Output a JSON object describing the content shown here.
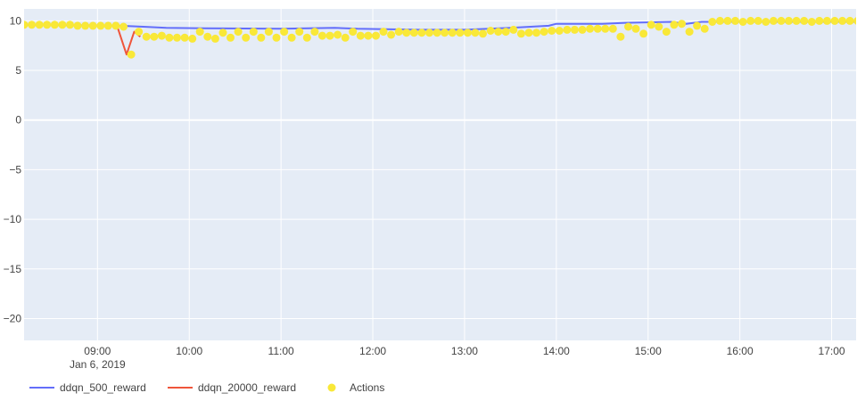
{
  "chart_data": {
    "type": "line",
    "title": "",
    "xlabel": "",
    "ylabel": "",
    "plot_bg": "#e5ecf6",
    "grid": true,
    "legend_position": "bottom-left",
    "x_range": [
      "2019-01-06 08:12",
      "2019-01-06 17:16"
    ],
    "ylim": [
      -22.2,
      11.2
    ],
    "y_ticks": [
      10,
      5,
      0,
      -5,
      -10,
      -15,
      -20
    ],
    "y_tick_labels": [
      "10",
      "5",
      "0",
      "−5",
      "−10",
      "−15",
      "−20"
    ],
    "x_ticks": [
      {
        "value": "2019-01-06 09:00",
        "label": "09:00",
        "sublabel": "Jan 6, 2019"
      },
      {
        "value": "2019-01-06 10:00",
        "label": "10:00"
      },
      {
        "value": "2019-01-06 11:00",
        "label": "11:00"
      },
      {
        "value": "2019-01-06 12:00",
        "label": "12:00"
      },
      {
        "value": "2019-01-06 13:00",
        "label": "13:00"
      },
      {
        "value": "2019-01-06 14:00",
        "label": "14:00"
      },
      {
        "value": "2019-01-06 15:00",
        "label": "15:00"
      },
      {
        "value": "2019-01-06 16:00",
        "label": "16:00"
      },
      {
        "value": "2019-01-06 17:00",
        "label": "17:00"
      }
    ],
    "series": [
      {
        "name": "ddqn_500_reward",
        "mode": "line",
        "color": "#636efa",
        "points": [
          [
            "2019-01-06 08:12",
            9.6
          ],
          [
            "2019-01-06 09:15",
            9.5
          ],
          [
            "2019-01-06 09:30",
            9.4
          ],
          [
            "2019-01-06 09:45",
            9.3
          ],
          [
            "2019-01-06 10:10",
            9.25
          ],
          [
            "2019-01-06 11:00",
            9.2
          ],
          [
            "2019-01-06 11:35",
            9.3
          ],
          [
            "2019-01-06 11:50",
            9.2
          ],
          [
            "2019-01-06 12:30",
            9.1
          ],
          [
            "2019-01-06 13:00",
            9.1
          ],
          [
            "2019-01-06 13:30",
            9.3
          ],
          [
            "2019-01-06 13:55",
            9.5
          ],
          [
            "2019-01-06 14:00",
            9.7
          ],
          [
            "2019-01-06 14:30",
            9.7
          ],
          [
            "2019-01-06 14:45",
            9.8
          ],
          [
            "2019-01-06 15:15",
            9.9
          ],
          [
            "2019-01-06 15:25",
            9.7
          ],
          [
            "2019-01-06 15:35",
            9.9
          ],
          [
            "2019-01-06 17:16",
            9.9
          ]
        ]
      },
      {
        "name": "ddqn_20000_reward",
        "mode": "line",
        "color": "#ef553b",
        "points": [
          [
            "2019-01-06 09:13",
            9.4
          ],
          [
            "2019-01-06 09:19",
            6.6
          ],
          [
            "2019-01-06 09:24",
            8.9
          ],
          [
            "2019-01-06 09:28",
            8.4
          ]
        ]
      },
      {
        "name": "Actions",
        "mode": "markers",
        "color": "#f9e838",
        "x_start": "2019-01-06 08:12",
        "x_step_minutes": 5,
        "y": [
          9.6,
          9.6,
          9.6,
          9.6,
          9.6,
          9.6,
          9.6,
          9.5,
          9.5,
          9.5,
          9.5,
          9.5,
          9.5,
          9.4,
          6.6,
          8.9,
          8.4,
          8.4,
          8.5,
          8.3,
          8.3,
          8.3,
          8.2,
          8.9,
          8.4,
          8.2,
          8.8,
          8.3,
          8.9,
          8.3,
          8.9,
          8.3,
          8.9,
          8.3,
          8.9,
          8.3,
          8.9,
          8.3,
          8.9,
          8.5,
          8.5,
          8.6,
          8.3,
          8.9,
          8.5,
          8.5,
          8.5,
          8.9,
          8.6,
          8.9,
          8.8,
          8.8,
          8.8,
          8.8,
          8.8,
          8.8,
          8.8,
          8.8,
          8.8,
          8.8,
          8.7,
          9.0,
          8.9,
          8.9,
          9.1,
          8.7,
          8.8,
          8.8,
          8.9,
          9.0,
          9.0,
          9.1,
          9.1,
          9.1,
          9.2,
          9.2,
          9.2,
          9.2,
          8.4,
          9.4,
          9.2,
          8.7,
          9.6,
          9.4,
          8.9,
          9.6,
          9.7,
          8.9,
          9.5,
          9.2,
          9.9,
          10.0,
          10.0,
          10.0,
          9.9,
          10.0,
          10.0,
          9.9,
          10.0,
          10.0,
          10.0,
          10.0,
          10.0,
          9.9,
          10.0,
          10.0,
          10.0,
          10.0,
          10.0,
          10.0,
          10.0,
          10.0,
          9.9,
          9.9,
          9.8
        ]
      }
    ]
  }
}
